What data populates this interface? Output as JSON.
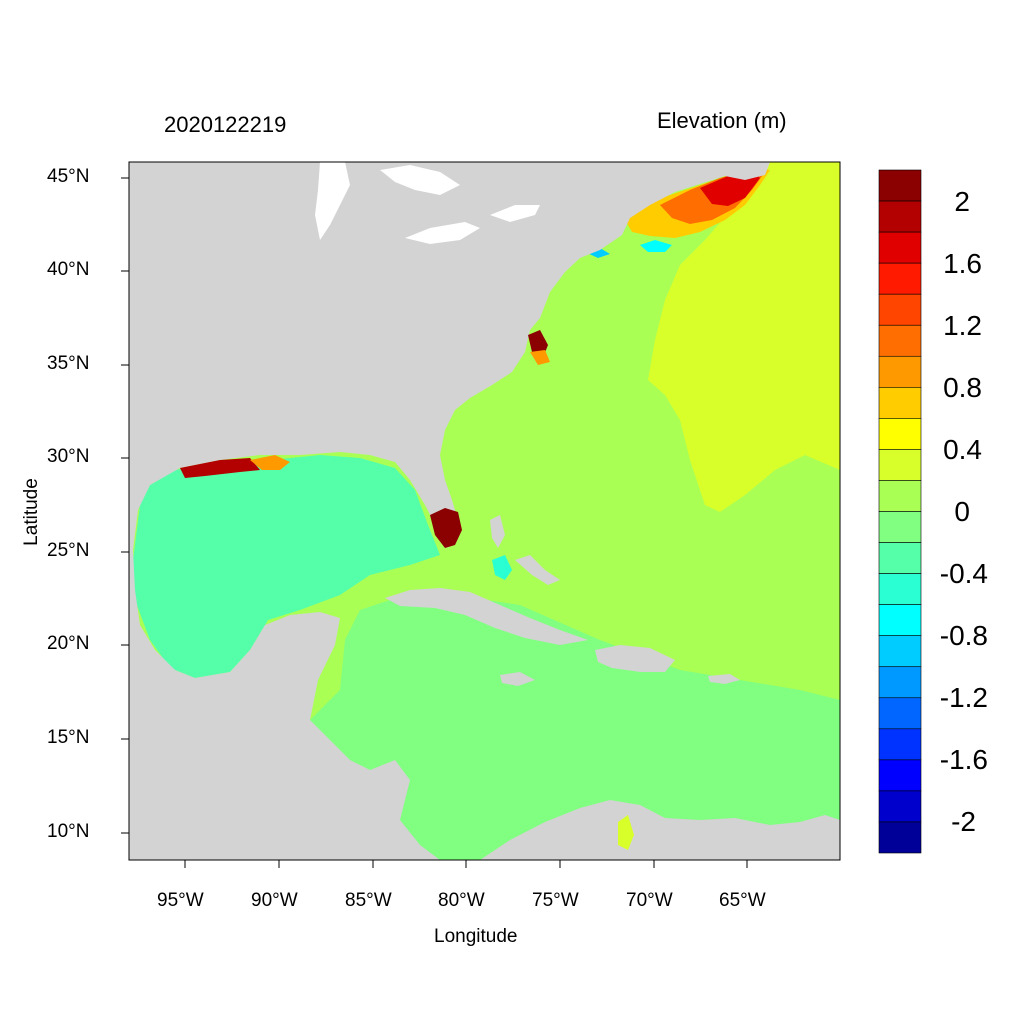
{
  "timestamp": "2020122219",
  "variable_title": "Elevation (m)",
  "x_axis_label": "Longitude",
  "y_axis_label": "Latitude",
  "x_ticks": [
    "95°W",
    "90°W",
    "85°W",
    "80°W",
    "75°W",
    "70°W",
    "65°W"
  ],
  "y_ticks": [
    "45°N",
    "40°N",
    "35°N",
    "30°N",
    "25°N",
    "20°N",
    "15°N",
    "10°N"
  ],
  "colorbar": {
    "labels": [
      "2",
      "1.6",
      "1.2",
      "0.8",
      "0.4",
      "0",
      "-0.4",
      "-0.8",
      "-1.2",
      "-1.6",
      "-2"
    ],
    "colors": [
      "#8b0000",
      "#b30000",
      "#e00000",
      "#ff1a00",
      "#ff4500",
      "#ff6e00",
      "#ff9900",
      "#ffcc00",
      "#ffff00",
      "#d8ff2a",
      "#aaff55",
      "#80ff80",
      "#55ffaa",
      "#2affd4",
      "#00ffff",
      "#00ccff",
      "#0099ff",
      "#0066ff",
      "#0033ff",
      "#0000ff",
      "#0000cc",
      "#000099"
    ]
  },
  "colors": {
    "land": "#d3d3d3",
    "lakes": "#ffffff"
  }
}
